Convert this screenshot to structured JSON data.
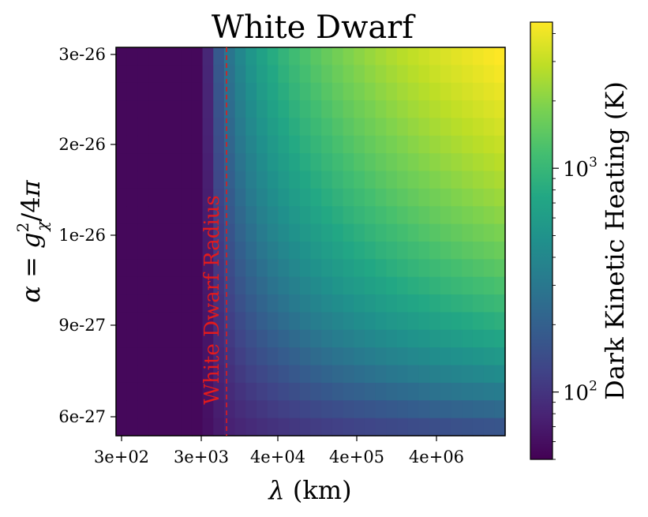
{
  "chart_data": {
    "type": "heatmap",
    "title": "White Dwarf",
    "xlabel": "λ (km)",
    "ylabel_parts": {
      "lhs": "α = ",
      "g": "g",
      "sup": "2",
      "sub": "χ",
      "rhs": "/4π"
    },
    "x_tick_labels": [
      "3e+02",
      "3e+03",
      "4e+04",
      "4e+05",
      "4e+06"
    ],
    "y_tick_labels": [
      "3e-26",
      "2e-26",
      "1e-26",
      "9e-27",
      "6e-27"
    ],
    "grid": false,
    "colorbar": {
      "label": "Dark Kinetic Heating (K)",
      "scale": "log",
      "range": [
        50,
        4500
      ],
      "tick_labels": [
        {
          "base": "10",
          "exp": "2",
          "value": 100
        },
        {
          "base": "10",
          "exp": "3",
          "value": 1000
        }
      ],
      "colormap": "viridis"
    },
    "annotation": {
      "text": "White Dwarf Radius",
      "x_value": 6000,
      "color": "#e31a1c",
      "style": "dashed vertical line"
    },
    "x_log_range": [
      150,
      80000000
    ],
    "columns": 36,
    "rows": 22,
    "description_of_values": "Heating ≈ 55 K for λ below the white-dwarf radius, rising with λ and α up to ≈ 4500 K at largest λ and α"
  }
}
